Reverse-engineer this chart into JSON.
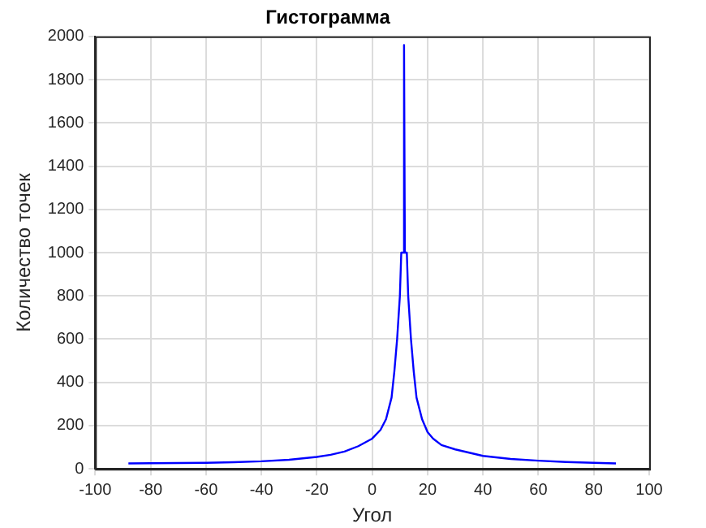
{
  "chart_data": {
    "type": "line",
    "title": "Гистограмма",
    "xlabel": "Угол",
    "ylabel": "Количество точек",
    "xlim": [
      -100,
      100
    ],
    "xticks": [
      -100,
      -80,
      -60,
      -40,
      -20,
      0,
      20,
      40,
      60,
      80,
      100
    ],
    "ylim": [
      0,
      2000
    ],
    "yticks": [
      0,
      200,
      400,
      600,
      800,
      1000,
      1200,
      1400,
      1600,
      1800,
      2000
    ],
    "grid": true,
    "legend": false,
    "marker": "none",
    "line_style": "solid",
    "series": [
      {
        "color": "#0000ff",
        "x": [
          -88,
          -80,
          -70,
          -60,
          -50,
          -40,
          -30,
          -20,
          -15,
          -10,
          -5,
          0,
          3,
          5,
          7,
          8,
          9,
          10,
          10.5,
          11.2,
          11.5,
          11.8,
          12.5,
          13,
          14,
          15,
          16,
          18,
          20,
          22,
          25,
          30,
          40,
          50,
          60,
          70,
          80,
          88
        ],
        "values": [
          25,
          26,
          27,
          28,
          31,
          35,
          42,
          55,
          65,
          80,
          105,
          140,
          180,
          230,
          330,
          450,
          600,
          800,
          1000,
          1000,
          1960,
          1000,
          1000,
          800,
          600,
          450,
          330,
          230,
          170,
          140,
          110,
          90,
          60,
          46,
          38,
          32,
          28,
          25
        ]
      }
    ]
  }
}
